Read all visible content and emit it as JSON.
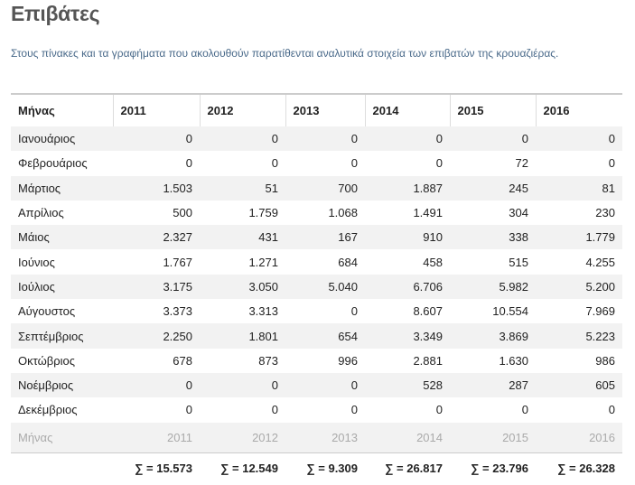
{
  "header": {
    "title": "Επιβάτες",
    "intro": "Στους πίνακες και τα γραφήματα που ακολουθούν παρατίθενται αναλυτικά στοιχεία των επιβατών της κρουαζιέρας."
  },
  "table": {
    "columns": [
      "Μήνας",
      "2011",
      "2012",
      "2013",
      "2014",
      "2015",
      "2016"
    ],
    "rows": [
      [
        "Ιανουάριος",
        "0",
        "0",
        "0",
        "0",
        "0",
        "0"
      ],
      [
        "Φεβρουάριος",
        "0",
        "0",
        "0",
        "0",
        "72",
        "0"
      ],
      [
        "Μάρτιος",
        "1.503",
        "51",
        "700",
        "1.887",
        "245",
        "81"
      ],
      [
        "Απρίλιος",
        "500",
        "1.759",
        "1.068",
        "1.491",
        "304",
        "230"
      ],
      [
        "Μάιος",
        "2.327",
        "431",
        "167",
        "910",
        "338",
        "1.779"
      ],
      [
        "Ιούνιος",
        "1.767",
        "1.271",
        "684",
        "458",
        "515",
        "4.255"
      ],
      [
        "Ιούλιος",
        "3.175",
        "3.050",
        "5.040",
        "6.706",
        "5.982",
        "5.200"
      ],
      [
        "Αύγουστος",
        "3.373",
        "3.313",
        "0",
        "8.607",
        "10.554",
        "7.969"
      ],
      [
        "Σεπτέμβριος",
        "2.250",
        "1.801",
        "654",
        "3.349",
        "3.869",
        "5.223"
      ],
      [
        "Οκτώβριος",
        "678",
        "873",
        "996",
        "2.881",
        "1.630",
        "986"
      ],
      [
        "Νοέμβριος",
        "0",
        "0",
        "0",
        "528",
        "287",
        "605"
      ],
      [
        "Δεκέμβριος",
        "0",
        "0",
        "0",
        "0",
        "0",
        "0"
      ]
    ],
    "footer_columns": [
      "Μήνας",
      "2011",
      "2012",
      "2013",
      "2014",
      "2015",
      "2016"
    ],
    "totals": [
      "∑ = 15.573",
      "∑ = 12.549",
      "∑ = 9.309",
      "∑ = 26.817",
      "∑ = 23.796",
      "∑ = 26.328"
    ]
  }
}
